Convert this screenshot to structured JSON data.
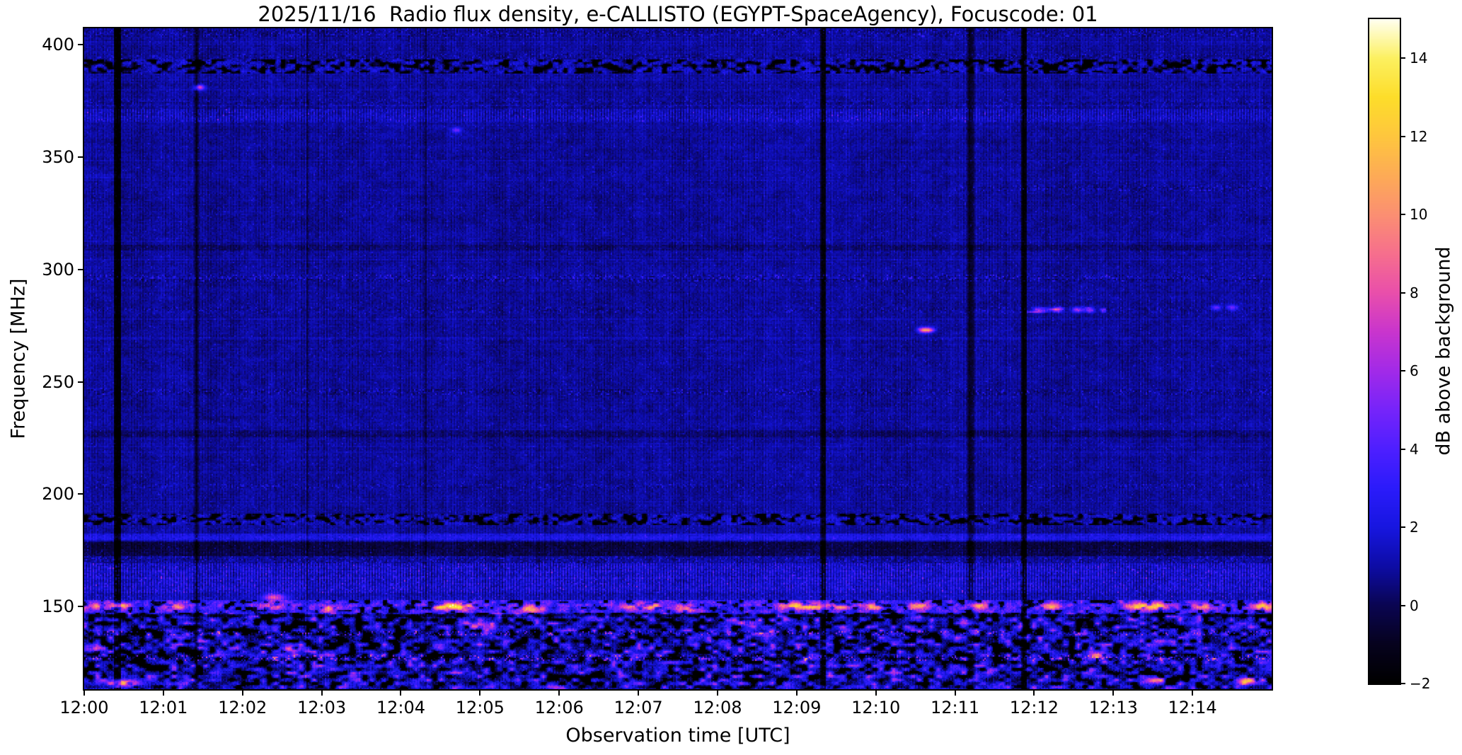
{
  "chart_data": {
    "type": "heatmap",
    "subtype": "solar-radio-spectrogram",
    "title": "2025/11/16  Radio flux density, e-CALLISTO (EGYPT-SpaceAgency), Focuscode: 01",
    "xlabel": "Observation time [UTC]",
    "ylabel": "Frequency [MHz]",
    "grid": false,
    "x_ticks": [
      "12:00",
      "12:01",
      "12:02",
      "12:03",
      "12:04",
      "12:05",
      "12:06",
      "12:07",
      "12:08",
      "12:09",
      "12:10",
      "12:11",
      "12:12",
      "12:13",
      "12:14"
    ],
    "x_range_minutes": [
      0,
      15
    ],
    "y_ticks": [
      {
        "v": 400,
        "label": "400"
      },
      {
        "v": 350,
        "label": "350"
      },
      {
        "v": 300,
        "label": "300"
      },
      {
        "v": 250,
        "label": "250"
      },
      {
        "v": 200,
        "label": "200"
      },
      {
        "v": 150,
        "label": "150"
      }
    ],
    "y_range_mhz": [
      113.2,
      407.3
    ],
    "colorbar": {
      "label": "dB above background",
      "range": [
        -2,
        15
      ],
      "ticks": [
        {
          "v": 14,
          "label": "14"
        },
        {
          "v": 12,
          "label": "12"
        },
        {
          "v": 10,
          "label": "10"
        },
        {
          "v": 8,
          "label": "8"
        },
        {
          "v": 6,
          "label": "6"
        },
        {
          "v": 4,
          "label": "4"
        },
        {
          "v": 2,
          "label": "2"
        },
        {
          "v": 0,
          "label": "0"
        },
        {
          "v": -2,
          "label": "−2"
        }
      ],
      "colormap_name": "gnuplot2-like",
      "stops": [
        [
          -2,
          "#000000"
        ],
        [
          -1,
          "#06021e"
        ],
        [
          0,
          "#0a0552"
        ],
        [
          1,
          "#0d0ca6"
        ],
        [
          2,
          "#1716e0"
        ],
        [
          3,
          "#2b1bfb"
        ],
        [
          4,
          "#4e1fff"
        ],
        [
          5,
          "#7624fa"
        ],
        [
          6,
          "#a22ae8"
        ],
        [
          7,
          "#c935cd"
        ],
        [
          8,
          "#e94fab"
        ],
        [
          9,
          "#f66f8d"
        ],
        [
          10,
          "#fb8f72"
        ],
        [
          11,
          "#fdab56"
        ],
        [
          12,
          "#fec63e"
        ],
        [
          13,
          "#fddd2a"
        ],
        [
          14,
          "#fcf060"
        ],
        [
          15,
          "#fffff0"
        ]
      ]
    },
    "features": {
      "background_level_db": 1.0,
      "bands": [
        {
          "freq_mhz": [
            403.5,
            406.5
          ],
          "type": "dotted",
          "amplitude_db": 0.8
        },
        {
          "freq_mhz": [
            393.5,
            396.0
          ],
          "type": "dotted",
          "amplitude_db": 0.7
        },
        {
          "freq_mhz": [
            387.0,
            393.5
          ],
          "type": "dark_speckle",
          "amplitude_db": 2.4
        },
        {
          "freq_mhz": [
            372.0,
            376.0
          ],
          "type": "dotted",
          "amplitude_db": 0.5
        },
        {
          "freq_mhz": [
            366.0,
            371.5
          ],
          "type": "texture",
          "amplitude_db": 1.5
        },
        {
          "freq_mhz": [
            340.5,
            342.5
          ],
          "type": "bright_line",
          "amplitude_db": 0.6,
          "time_min": [
            0,
            0.6
          ]
        },
        {
          "freq_mhz": [
            335.0,
            337.5
          ],
          "type": "dotted",
          "amplitude_db": 0.8,
          "time_min": [
            11.0,
            15
          ]
        },
        {
          "freq_mhz": [
            308.5,
            311.0
          ],
          "type": "dark",
          "amplitude_db": 0.5
        },
        {
          "freq_mhz": [
            294.5,
            298.0
          ],
          "type": "dotted",
          "amplitude_db": 1.0
        },
        {
          "freq_mhz": [
            281.0,
            283.5
          ],
          "type": "dotted",
          "amplitude_db": 0.6
        },
        {
          "freq_mhz": [
            281.0,
            283.5
          ],
          "type": "bright_dashes",
          "amplitude_db": 2.2,
          "time_min": [
            11.9,
            12.9
          ]
        },
        {
          "freq_mhz": [
            244.0,
            247.0
          ],
          "type": "dotted",
          "amplitude_db": 0.9
        },
        {
          "freq_mhz": [
            225.5,
            228.5
          ],
          "type": "dark",
          "amplitude_db": 0.6
        },
        {
          "freq_mhz": [
            202.5,
            204.5
          ],
          "type": "dotted",
          "amplitude_db": 0.7
        },
        {
          "freq_mhz": [
            186.0,
            191.5
          ],
          "type": "dark_speckle",
          "amplitude_db": 2.6
        },
        {
          "freq_mhz": [
            179.5,
            182.5
          ],
          "type": "bright_line",
          "amplitude_db": 1.5
        },
        {
          "freq_mhz": [
            172.5,
            178.5
          ],
          "type": "dark",
          "amplitude_db": 1.3
        },
        {
          "freq_mhz": [
            169.0,
            172.5
          ],
          "type": "dotted",
          "amplitude_db": 0.8
        },
        {
          "freq_mhz": [
            156.0,
            169.0
          ],
          "type": "texture",
          "amplitude_db": 2.4
        },
        {
          "freq_mhz": [
            153.0,
            156.0
          ],
          "type": "texture",
          "amplitude_db": 1.4
        },
        {
          "freq_mhz": [
            147.0,
            153.0
          ],
          "type": "active",
          "amplitude_db": 3.0
        },
        {
          "freq_mhz": [
            113.0,
            147.0
          ],
          "type": "chaos",
          "amplitude_db": 3.0
        },
        {
          "freq_mhz": [
            145.4,
            146.8
          ],
          "type": "dark",
          "amplitude_db": 1.8
        },
        {
          "freq_mhz": [
            137.4,
            138.8
          ],
          "type": "dotted",
          "amplitude_db": 2.2
        },
        {
          "freq_mhz": [
            126.0,
            128.2
          ],
          "type": "dotted",
          "amplitude_db": 2.4
        }
      ],
      "vertical_dropouts": [
        {
          "time_min": 0.42,
          "width_min": 0.05,
          "depth_db": 3.1
        },
        {
          "time_min": 1.42,
          "width_min": 0.022,
          "depth_db": 1.6
        },
        {
          "time_min": 2.82,
          "width_min": 0.02,
          "depth_db": 1.1
        },
        {
          "time_min": 4.31,
          "width_min": 0.02,
          "depth_db": 1.0
        },
        {
          "time_min": 9.34,
          "width_min": 0.035,
          "depth_db": 3.0
        },
        {
          "time_min": 11.2,
          "width_min": 0.04,
          "depth_db": 1.8
        },
        {
          "time_min": 11.87,
          "width_min": 0.035,
          "depth_db": 2.9
        }
      ],
      "hotspots": [
        {
          "t": 0.07,
          "f": 131,
          "db": 9
        },
        {
          "t": 0.15,
          "f": 150,
          "db": 7
        },
        {
          "t": 0.45,
          "f": 150,
          "db": 8
        },
        {
          "t": 0.52,
          "f": 116,
          "db": 10
        },
        {
          "t": 1.15,
          "f": 150,
          "db": 7
        },
        {
          "t": 2.35,
          "f": 150,
          "db": 7
        },
        {
          "t": 2.4,
          "f": 154,
          "db": 7
        },
        {
          "t": 2.6,
          "f": 131,
          "db": 7
        },
        {
          "t": 3.1,
          "f": 149,
          "db": 6
        },
        {
          "t": 4.55,
          "f": 150,
          "db": 11
        },
        {
          "t": 4.8,
          "f": 150,
          "db": 10
        },
        {
          "t": 5.0,
          "f": 141,
          "db": 8
        },
        {
          "t": 5.65,
          "f": 149,
          "db": 8
        },
        {
          "t": 6.9,
          "f": 150,
          "db": 7
        },
        {
          "t": 7.15,
          "f": 150,
          "db": 8
        },
        {
          "t": 7.6,
          "f": 149,
          "db": 7
        },
        {
          "t": 8.35,
          "f": 143,
          "db": 7
        },
        {
          "t": 8.95,
          "f": 150,
          "db": 9
        },
        {
          "t": 9.2,
          "f": 150,
          "db": 9
        },
        {
          "t": 9.55,
          "f": 150,
          "db": 7
        },
        {
          "t": 9.95,
          "f": 150,
          "db": 7
        },
        {
          "t": 10.55,
          "f": 150,
          "db": 8
        },
        {
          "t": 11.3,
          "f": 150,
          "db": 7
        },
        {
          "t": 12.2,
          "f": 150,
          "db": 8
        },
        {
          "t": 12.8,
          "f": 128,
          "db": 8
        },
        {
          "t": 13.3,
          "f": 150,
          "db": 10
        },
        {
          "t": 13.5,
          "f": 117,
          "db": 8
        },
        {
          "t": 13.55,
          "f": 150,
          "db": 9
        },
        {
          "t": 14.1,
          "f": 150,
          "db": 7
        },
        {
          "t": 14.7,
          "f": 117,
          "db": 10
        },
        {
          "t": 14.9,
          "f": 150,
          "db": 9
        }
      ],
      "bright_points": [
        {
          "t": 10.6,
          "f": 273,
          "db": 8
        },
        {
          "t": 10.68,
          "f": 273,
          "db": 7
        },
        {
          "t": 1.46,
          "f": 381,
          "db": 7
        },
        {
          "t": 12.05,
          "f": 282,
          "db": 5
        },
        {
          "t": 12.3,
          "f": 282,
          "db": 5
        },
        {
          "t": 12.55,
          "f": 282,
          "db": 5
        },
        {
          "t": 12.7,
          "f": 282,
          "db": 5
        },
        {
          "t": 14.3,
          "f": 283,
          "db": 4
        },
        {
          "t": 14.5,
          "f": 283,
          "db": 4
        },
        {
          "t": 4.7,
          "f": 362,
          "db": 4
        }
      ]
    }
  }
}
